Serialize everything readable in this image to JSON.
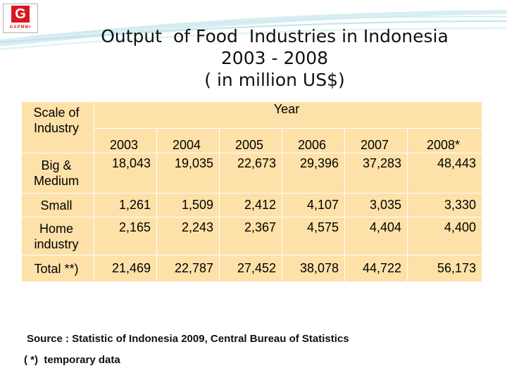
{
  "logo": {
    "mark": "G",
    "sub": "GAPMMI"
  },
  "title": {
    "line1": "Output  of Food  Industries in Indonesia",
    "line2": "2003 - 2008",
    "line3": "( in million US$)"
  },
  "table": {
    "scale_header": "Scale of Industry",
    "year_header": "Year",
    "years": [
      "2003",
      "2004",
      "2005",
      "2006",
      "2007",
      "2008*"
    ],
    "rows": [
      {
        "label": "Big & Medium",
        "values": [
          "18,043",
          "19,035",
          "22,673",
          "29,396",
          "37,283",
          "48,443"
        ]
      },
      {
        "label": "Small",
        "values": [
          "1,261",
          "1,509",
          "2,412",
          "4,107",
          "3,035",
          "3,330"
        ]
      },
      {
        "label": "Home industry",
        "values": [
          "2,165",
          "2,243",
          "2,367",
          "4,575",
          "4,404",
          "4,400"
        ]
      },
      {
        "label": "Total **)",
        "values": [
          "21,469",
          "22,787",
          "27,452",
          "38,078",
          "44,722",
          "56,173"
        ]
      }
    ]
  },
  "source": "Source : Statistic of Indonesia 2009, Central Bureau of Statistics",
  "note": "( *)  temporary data",
  "colors": {
    "table_fill": "#fde1a8",
    "swoosh": "#bfe3ea",
    "logo_red": "#d9171f"
  }
}
